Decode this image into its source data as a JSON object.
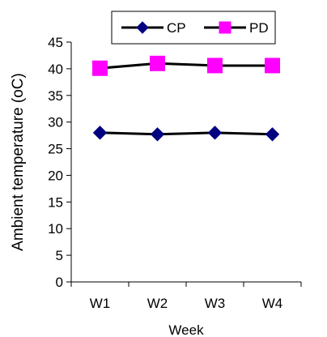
{
  "chart_data": {
    "type": "line",
    "categories": [
      "W1",
      "W2",
      "W3",
      "W4"
    ],
    "series": [
      {
        "name": "CP",
        "values": [
          28.0,
          27.7,
          28.0,
          27.7
        ],
        "color": "#000080",
        "marker": "diamond"
      },
      {
        "name": "PD",
        "values": [
          40.1,
          41.0,
          40.6,
          40.6
        ],
        "color": "#ff00ff",
        "marker": "square"
      }
    ],
    "title": "",
    "xlabel": "Week",
    "ylabel": "Ambient temperature (oC)",
    "ylim": [
      0,
      45
    ],
    "yticks": [
      0,
      5,
      10,
      15,
      20,
      25,
      30,
      35,
      40,
      45
    ],
    "line_color": "#000000",
    "grid": false,
    "legend": "top"
  }
}
